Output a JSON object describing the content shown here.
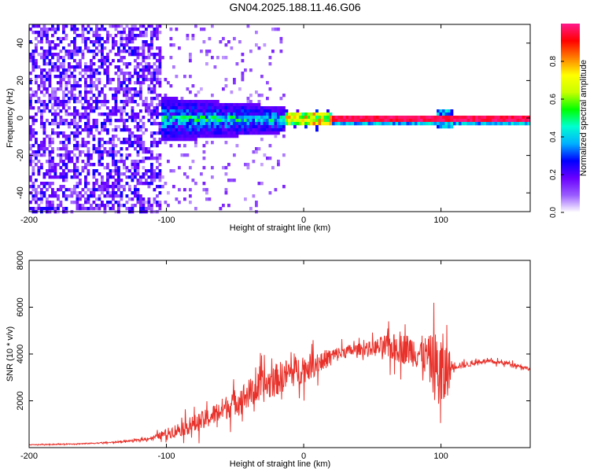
{
  "title": "GN04.2025.188.11.46.G06",
  "chart_data": [
    {
      "type": "heatmap",
      "xlabel": "Height of straight line (km)",
      "ylabel": "Frequency (Hz)",
      "xlim": [
        -200,
        165
      ],
      "ylim": [
        -50,
        50
      ],
      "xticks": [
        -200,
        -100,
        0,
        100
      ],
      "yticks": [
        -40,
        -20,
        0,
        20,
        40
      ],
      "grid": false,
      "colorbar": {
        "label": "Normalized spectral amplitude",
        "range": [
          0,
          1
        ],
        "ticks": [
          "0.0",
          "0.2",
          "0.4",
          "0.6",
          "0.8"
        ],
        "colormap": [
          "#ffffff",
          "#9a5cff",
          "#6a00ff",
          "#0000ff",
          "#00b0ff",
          "#00ffd0",
          "#00ff00",
          "#c8ff00",
          "#ffff00",
          "#ff8000",
          "#ff0000",
          "#ff1a8c"
        ]
      },
      "features": [
        {
          "region_km": [
            -200,
            -105
          ],
          "freq_hz": [
            -50,
            50
          ],
          "amplitude": "0.1-0.25",
          "description": "broadband purple noise"
        },
        {
          "region_km": [
            -105,
            -15
          ],
          "freq_hz": [
            -10,
            10
          ],
          "amplitude": "0.2-0.5",
          "description": "noisy band narrowing toward 0 Hz"
        },
        {
          "region_km": [
            -15,
            20
          ],
          "freq_hz": [
            -3,
            3
          ],
          "amplitude": "0.5-0.8",
          "description": "narrow line"
        },
        {
          "region_km": [
            20,
            165
          ],
          "freq_hz": [
            -1,
            1
          ],
          "amplitude": "0.9-1.0",
          "description": "strong constant carrier at 0 Hz"
        }
      ]
    },
    {
      "type": "line",
      "xlabel": "Height of straight line (km)",
      "ylabel": "SNR (10 * v/v)",
      "xlim": [
        -200,
        165
      ],
      "ylim": [
        0,
        8000
      ],
      "xticks": [
        -200,
        -100,
        0,
        100
      ],
      "yticks": [
        2000,
        4000,
        6000,
        8000
      ],
      "grid": false,
      "series": [
        {
          "color": "#e8312a",
          "x": [
            -200,
            -180,
            -160,
            -140,
            -120,
            -110,
            -100,
            -90,
            -80,
            -70,
            -60,
            -50,
            -40,
            -30,
            -20,
            -10,
            0,
            10,
            20,
            30,
            40,
            50,
            60,
            70,
            80,
            90,
            95,
            100,
            105,
            110,
            120,
            130,
            140,
            150,
            160,
            165
          ],
          "y": [
            120,
            140,
            170,
            220,
            320,
            420,
            600,
            800,
            1000,
            1250,
            1600,
            1950,
            2300,
            2600,
            2900,
            3200,
            3350,
            3600,
            3900,
            4100,
            4200,
            4250,
            4300,
            4250,
            4150,
            3900,
            3500,
            3000,
            3300,
            3500,
            3550,
            3700,
            3650,
            3600,
            3450,
            3350
          ],
          "noise_amplitude": [
            20,
            25,
            30,
            40,
            60,
            120,
            300,
            450,
            550,
            600,
            700,
            800,
            900,
            1000,
            1000,
            950,
            850,
            700,
            500,
            400,
            350,
            450,
            800,
            900,
            1000,
            1200,
            2000,
            3000,
            1500,
            250,
            150,
            130,
            130,
            120,
            110,
            100
          ]
        }
      ]
    }
  ]
}
